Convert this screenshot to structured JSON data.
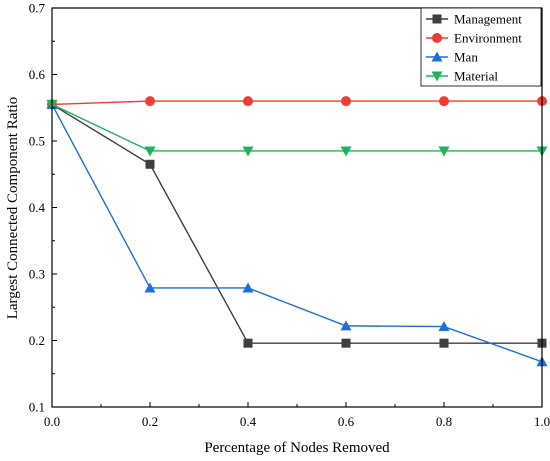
{
  "chart_data": {
    "type": "line",
    "title": "",
    "xlabel": "Percentage of Nodes Removed",
    "ylabel": "Largest  Connected Component Ratio",
    "xlim": [
      0.0,
      1.0
    ],
    "ylim": [
      0.1,
      0.7
    ],
    "x_ticks": [
      0.0,
      0.2,
      0.4,
      0.6,
      0.8,
      1.0
    ],
    "y_ticks": [
      0.1,
      0.2,
      0.3,
      0.4,
      0.5,
      0.6,
      0.7
    ],
    "x_tick_labels": [
      "0.0",
      "0.2",
      "0.4",
      "0.6",
      "0.8",
      "1.0"
    ],
    "y_tick_labels": [
      "0.1",
      "0.2",
      "0.3",
      "0.4",
      "0.5",
      "0.6",
      "0.7"
    ],
    "grid": false,
    "legend_position": "top-right",
    "x": [
      0.0,
      0.2,
      0.4,
      0.6,
      0.8,
      1.0
    ],
    "series": [
      {
        "name": "Management",
        "color": "#3f3f3f",
        "marker": "square",
        "values": [
          0.555,
          0.465,
          0.196,
          0.196,
          0.196,
          0.196
        ]
      },
      {
        "name": "Environment",
        "color": "#f03c32",
        "marker": "circle",
        "values": [
          0.555,
          0.56,
          0.56,
          0.56,
          0.56,
          0.56
        ]
      },
      {
        "name": "Man",
        "color": "#1f6fd9",
        "marker": "triangle-up",
        "values": [
          0.555,
          0.279,
          0.279,
          0.222,
          0.221,
          0.168
        ]
      },
      {
        "name": "Material",
        "color": "#1fb35c",
        "marker": "triangle-down",
        "values": [
          0.555,
          0.485,
          0.485,
          0.485,
          0.485,
          0.485
        ]
      }
    ]
  }
}
